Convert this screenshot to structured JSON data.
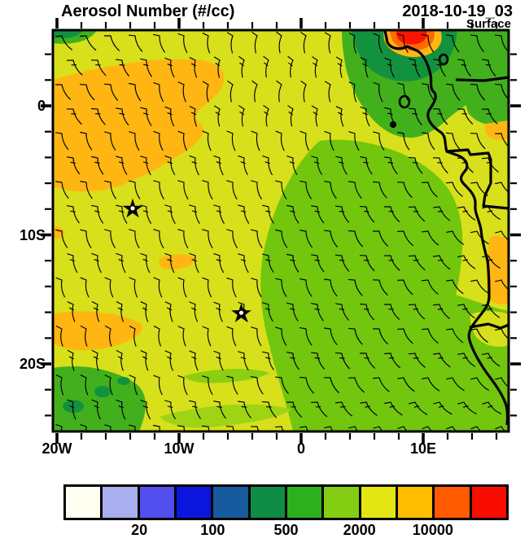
{
  "header": {
    "title": "Aerosol Number (#/cc)",
    "datetime": "2018-10-19_03",
    "level": "Surface"
  },
  "axes": {
    "x_labels": [
      "20W",
      "10W",
      "0",
      "10E"
    ],
    "y_labels": [
      "0",
      "10S",
      "20S"
    ]
  },
  "chart_data": {
    "type": "heatmap",
    "title": "Aerosol Number (#/cc)",
    "valid_time": "2018-10-19_03",
    "level": "Surface",
    "units": "#/cc",
    "projection": {
      "lon_min": -20,
      "lon_max": 17.3,
      "lat_min": -25.1,
      "lat_max": 5.9
    },
    "x_ticks": {
      "lons": [
        -20,
        -10,
        0,
        10
      ],
      "labels": [
        "20W",
        "10W",
        "0",
        "10E"
      ],
      "minor_step_deg": 2
    },
    "y_ticks": {
      "lats": [
        0,
        -10,
        -20
      ],
      "labels": [
        "0",
        "10S",
        "20S"
      ],
      "minor_step_deg": 2
    },
    "colorbar": {
      "colors": [
        "#fffff2",
        "#a9aeee",
        "#5150ee",
        "#0b16dd",
        "#175a9d",
        "#0f8c46",
        "#2cb01e",
        "#83ce12",
        "#e4e612",
        "#ffbe00",
        "#ff5a00",
        "#f80d00"
      ],
      "tick_labels": [
        "20",
        "100",
        "500",
        "2000",
        "10000"
      ],
      "tick_after_cell_index": [
        1,
        3,
        5,
        7,
        9
      ],
      "scale": "log-spaced bins"
    },
    "palette": {
      "base_yellow": "#d7e01a",
      "blob_green": "#72c60e",
      "mid_green": "#42b01c",
      "dark_green": "#12923f",
      "light_green_streak": "#9ed414",
      "orange": "#ffb612",
      "orange_red": "#ff6a00",
      "red": "#fb1400",
      "line_black": "#000000"
    },
    "regions": [
      {
        "name": "background-yellow",
        "approx_value": "2000-5000",
        "desc": "most of domain, yellow"
      },
      {
        "name": "nw-orange-plume",
        "approx_value": "5000-10000",
        "desc": "large orange plume, 20W-3W / 2N-6S"
      },
      {
        "name": "left-orange-streak",
        "approx_value": "5000-10000",
        "desc": "orange streak near 20W-13W, 16-18S"
      },
      {
        "name": "small-orange-patch",
        "approx_value": "5000-10000",
        "desc": "small orange patch near 11W, 12S"
      },
      {
        "name": "central-green-blob",
        "approx_value": "1000-2000",
        "desc": "large green oval, 3W-13E / 3S-25S"
      },
      {
        "name": "sw-green-patch",
        "approx_value": "500-1000",
        "desc": "green patch bottom-left corner with darker spots"
      },
      {
        "name": "ne-dark-green-band",
        "approx_value": "200-500",
        "desc": "dark green band along top edge 3E-13E near Gulf of Guinea coast"
      },
      {
        "name": "top-red-spot",
        "approx_value": ">20000",
        "desc": "red/orange hotspot at top edge near 7E"
      },
      {
        "name": "coast-orange-strips",
        "approx_value": "5000-10000",
        "desc": "orange strips along Angola coast at right edge"
      }
    ],
    "wind_barbs": {
      "present": true,
      "grid_spacing_deg": 2,
      "style": "black curved barbs with flags"
    },
    "markers": [
      {
        "symbol": "star",
        "lon": -13.8,
        "lat": -8.0
      },
      {
        "symbol": "star",
        "lon": -4.9,
        "lat": -16.1
      }
    ]
  }
}
